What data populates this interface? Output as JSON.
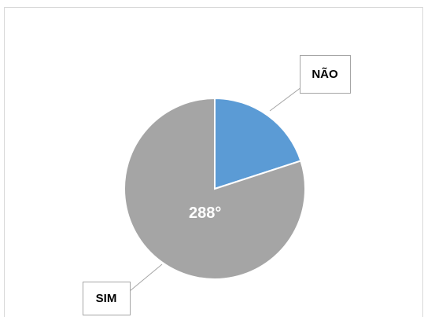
{
  "chart_data": {
    "type": "pie",
    "categories": [
      "NÃO",
      "SIM"
    ],
    "values": [
      72,
      288
    ],
    "value_labels": [
      null,
      "288°"
    ],
    "colors": [
      "#5b9bd5",
      "#a5a5a5"
    ]
  }
}
